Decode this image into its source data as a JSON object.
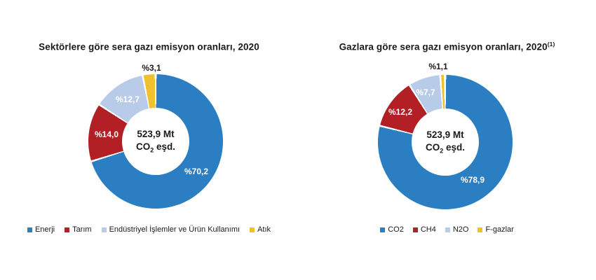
{
  "page": {
    "background": "#ffffff"
  },
  "colors": {
    "series_blue": "#2a7ec1",
    "series_red": "#b22025",
    "series_light_blue": "#b8cbe9",
    "series_yellow": "#f0c12e",
    "inside_label_text": "#ffffff",
    "outside_label_text": "#1a1a1a",
    "title_text": "#1a1a1a"
  },
  "charts": [
    {
      "title": "Sektörlere göre sera gazı emisyon oranları, 2020",
      "title_sup": "",
      "center": {
        "line1": "523,9 Mt",
        "co": "CO",
        "co_sub": "2",
        "suffix": " eşd."
      },
      "labels": {
        "s0": "%70,2",
        "s1": "%14,0",
        "s2": "%12,7",
        "s3": "%3,1"
      }
    },
    {
      "title": "Gazlara göre sera gazı emisyon oranları, 2020",
      "title_sup": "(1)",
      "center": {
        "line1": "523,9 Mt",
        "co": "CO",
        "co_sub": "2",
        "suffix": " eşd."
      },
      "labels": {
        "s0": "%78,9",
        "s1": "%12,2",
        "s2": "%7,7",
        "s3": "%1,1"
      }
    }
  ],
  "chart_data": [
    {
      "type": "pie",
      "subtype": "donut",
      "title": "Sektörlere göre sera gazı emisyon oranları, 2020",
      "categories": [
        "Enerji",
        "Tarım",
        "Endüstriyel İşlemler ve Ürün Kullanımı",
        "Atık"
      ],
      "values": [
        70.2,
        14.0,
        12.7,
        3.1
      ],
      "unit": "percent",
      "value_labels": [
        "%70,2",
        "%14,0",
        "%12,7",
        "%3,1"
      ],
      "colors": [
        "#2a7ec1",
        "#b22025",
        "#b8cbe9",
        "#f0c12e"
      ],
      "center_label": "523,9 Mt CO2 eşd.",
      "legend_position": "bottom",
      "start_angle_deg": 0,
      "direction": "clockwise"
    },
    {
      "type": "pie",
      "subtype": "donut",
      "title": "Gazlara göre sera gazı emisyon oranları, 2020(1)",
      "categories": [
        "CO2",
        "CH4",
        "N2O",
        "F-gazlar"
      ],
      "values": [
        78.9,
        12.2,
        7.7,
        1.1
      ],
      "unit": "percent",
      "value_labels": [
        "%78,9",
        "%12,2",
        "%7,7",
        "%1,1"
      ],
      "colors": [
        "#2a7ec1",
        "#b22025",
        "#b8cbe9",
        "#f0c12e"
      ],
      "center_label": "523,9 Mt CO2 eşd.",
      "legend_position": "bottom",
      "start_angle_deg": 0,
      "direction": "clockwise"
    }
  ]
}
